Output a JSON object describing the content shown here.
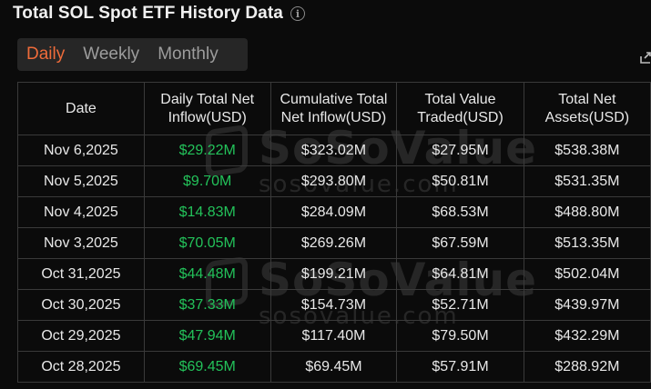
{
  "header": {
    "title": "Total SOL Spot ETF History Data",
    "info_icon": "info-icon"
  },
  "tabs": [
    {
      "label": "Daily",
      "active": true
    },
    {
      "label": "Weekly",
      "active": false
    },
    {
      "label": "Monthly",
      "active": false
    }
  ],
  "table": {
    "headers": [
      "Date",
      "Daily Total Net\nInflow(USD)",
      "Cumulative Total\nNet Inflow(USD)",
      "Total Value\nTraded(USD)",
      "Total Net\nAssets(USD)"
    ],
    "rows": [
      [
        "Nov 6,2025",
        "$29.22M",
        "$323.02M",
        "$27.95M",
        "$538.38M"
      ],
      [
        "Nov 5,2025",
        "$9.70M",
        "$293.80M",
        "$50.81M",
        "$531.35M"
      ],
      [
        "Nov 4,2025",
        "$14.83M",
        "$284.09M",
        "$68.53M",
        "$488.80M"
      ],
      [
        "Nov 3,2025",
        "$70.05M",
        "$269.26M",
        "$67.59M",
        "$513.35M"
      ],
      [
        "Oct 31,2025",
        "$44.48M",
        "$199.21M",
        "$64.81M",
        "$502.04M"
      ],
      [
        "Oct 30,2025",
        "$37.33M",
        "$154.73M",
        "$52.71M",
        "$439.97M"
      ],
      [
        "Oct 29,2025",
        "$47.94M",
        "$117.40M",
        "$79.50M",
        "$432.29M"
      ],
      [
        "Oct 28,2025",
        "$69.45M",
        "$69.45M",
        "$57.91M",
        "$288.92M"
      ]
    ]
  },
  "watermark": {
    "brand": "SoSoValue",
    "url": "sosovalue.com"
  },
  "colors": {
    "accent": "#ee6b3a",
    "positive": "#23c25a",
    "background": "#0b0b0b"
  }
}
